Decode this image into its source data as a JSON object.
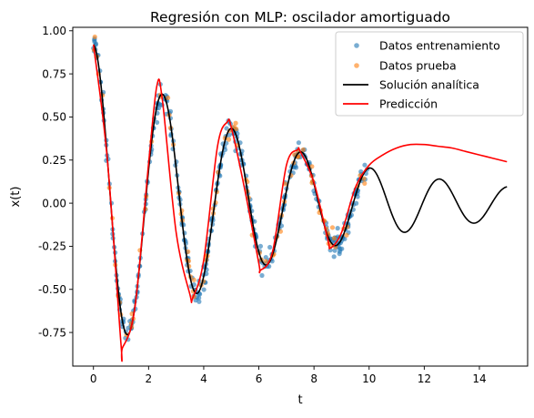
{
  "chart_data": {
    "type": "scatter",
    "title": "Regresión con MLP: oscilador amortiguado",
    "xlabel": "t",
    "ylabel": "x(t)",
    "xlim": [
      -0.75,
      15.75
    ],
    "ylim": [
      -0.945,
      1.02
    ],
    "x_ticks": [
      0,
      2,
      4,
      6,
      8,
      10,
      12,
      14
    ],
    "y_ticks": [
      -0.75,
      -0.5,
      -0.25,
      0.0,
      0.25,
      0.5,
      0.75,
      1.0
    ],
    "grid": false,
    "legend_position": "top-right",
    "series": [
      {
        "name": "Datos entrenamiento",
        "kind": "scatter",
        "color": "#1f77b4",
        "opacity": 0.6,
        "x_range": [
          0,
          10
        ],
        "count": 400,
        "noise_sd": 0.035
      },
      {
        "name": "Datos prueba",
        "kind": "scatter",
        "color": "#ff7f0e",
        "opacity": 0.6,
        "x_range": [
          0,
          10
        ],
        "count": 100,
        "noise_sd": 0.035
      },
      {
        "name": "Solución analítica",
        "kind": "line",
        "color": "#000000",
        "x_range": [
          0,
          15
        ],
        "formula": "x(t) = 0.92 * exp(-0.15 t) * cos(2.5 t)"
      },
      {
        "name": "Predicción",
        "kind": "line",
        "color": "#ff0000",
        "x": [
          0,
          0.5,
          1.0,
          1.05,
          1.5,
          2.0,
          2.3,
          2.5,
          3.0,
          3.5,
          3.6,
          4.0,
          4.5,
          4.85,
          5.0,
          5.5,
          6.0,
          6.05,
          6.5,
          7.0,
          7.4,
          7.5,
          8.0,
          8.5,
          8.6,
          9.0,
          9.5,
          10.0,
          10.5,
          11.0,
          11.5,
          12.0,
          12.5,
          13.0,
          13.5,
          14.0,
          14.5,
          15.0
        ],
        "y": [
          0.92,
          0.26,
          -0.82,
          -0.84,
          -0.61,
          0.23,
          0.68,
          0.6,
          -0.17,
          -0.53,
          -0.55,
          -0.33,
          0.33,
          0.47,
          0.44,
          0.07,
          -0.35,
          -0.39,
          -0.28,
          0.22,
          0.31,
          0.3,
          0.12,
          -0.21,
          -0.26,
          -0.17,
          0.09,
          0.22,
          0.28,
          0.32,
          0.34,
          0.34,
          0.33,
          0.32,
          0.3,
          0.28,
          0.26,
          0.24
        ]
      }
    ]
  }
}
